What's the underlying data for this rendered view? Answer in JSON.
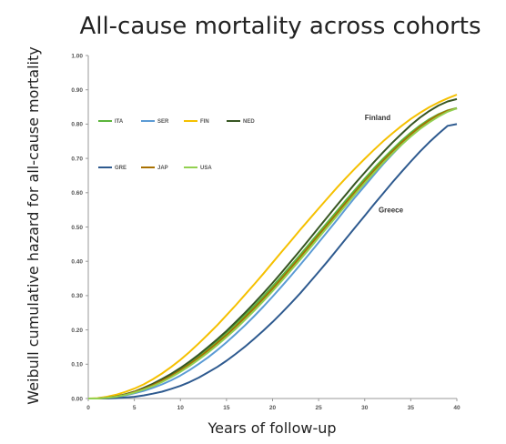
{
  "chart_data": {
    "type": "line",
    "title": "All-cause mortality across cohorts",
    "xlabel": "Years of follow-up",
    "ylabel": "Weibull cumulative hazard for all-cause mortality",
    "xlim": [
      0,
      40
    ],
    "ylim": [
      0,
      1.0
    ],
    "x_ticks": [
      "0",
      "5",
      "10",
      "15",
      "20",
      "25",
      "30",
      "35",
      "40"
    ],
    "y_ticks": [
      "0.00",
      "0.10",
      "0.20",
      "0.30",
      "0.40",
      "0.50",
      "0.60",
      "0.70",
      "0.80",
      "0.90",
      "1.00"
    ],
    "grid": false,
    "x": [
      0,
      1,
      2,
      3,
      4,
      5,
      6,
      7,
      8,
      9,
      10,
      11,
      12,
      13,
      14,
      15,
      16,
      17,
      18,
      19,
      20,
      21,
      22,
      23,
      24,
      25,
      26,
      27,
      28,
      29,
      30,
      31,
      32,
      33,
      34,
      35,
      36,
      37,
      38,
      39,
      40
    ],
    "series": [
      {
        "name": "ITA",
        "color": "#5bb53c",
        "values": [
          0.0,
          0.0,
          0.002,
          0.006,
          0.012,
          0.02,
          0.03,
          0.042,
          0.055,
          0.07,
          0.087,
          0.105,
          0.125,
          0.146,
          0.168,
          0.192,
          0.217,
          0.243,
          0.27,
          0.298,
          0.327,
          0.357,
          0.388,
          0.419,
          0.451,
          0.483,
          0.515,
          0.547,
          0.579,
          0.61,
          0.641,
          0.671,
          0.699,
          0.726,
          0.752,
          0.775,
          0.796,
          0.814,
          0.829,
          0.84,
          0.847
        ]
      },
      {
        "name": "SER",
        "color": "#5b9bd5",
        "values": [
          0.0,
          0.0,
          0.002,
          0.005,
          0.009,
          0.015,
          0.022,
          0.031,
          0.041,
          0.053,
          0.067,
          0.083,
          0.101,
          0.12,
          0.141,
          0.164,
          0.188,
          0.213,
          0.24,
          0.268,
          0.297,
          0.327,
          0.358,
          0.39,
          0.422,
          0.455,
          0.488,
          0.521,
          0.555,
          0.588,
          0.62,
          0.652,
          0.683,
          0.712,
          0.74,
          0.765,
          0.788,
          0.808,
          0.825,
          0.838,
          0.846
        ]
      },
      {
        "name": "FIN",
        "color": "#f5c000",
        "values": [
          0.0,
          0.001,
          0.005,
          0.011,
          0.019,
          0.029,
          0.041,
          0.056,
          0.073,
          0.092,
          0.113,
          0.136,
          0.161,
          0.187,
          0.214,
          0.243,
          0.272,
          0.302,
          0.333,
          0.364,
          0.396,
          0.428,
          0.46,
          0.492,
          0.523,
          0.554,
          0.585,
          0.615,
          0.644,
          0.672,
          0.699,
          0.725,
          0.75,
          0.773,
          0.795,
          0.815,
          0.833,
          0.849,
          0.863,
          0.875,
          0.886
        ]
      },
      {
        "name": "NED",
        "color": "#375623",
        "values": [
          0.0,
          0.0,
          0.002,
          0.006,
          0.012,
          0.02,
          0.031,
          0.043,
          0.057,
          0.072,
          0.089,
          0.108,
          0.128,
          0.15,
          0.173,
          0.197,
          0.223,
          0.25,
          0.278,
          0.307,
          0.337,
          0.368,
          0.4,
          0.432,
          0.465,
          0.498,
          0.531,
          0.564,
          0.596,
          0.628,
          0.659,
          0.689,
          0.718,
          0.746,
          0.772,
          0.797,
          0.819,
          0.838,
          0.854,
          0.866,
          0.873
        ]
      },
      {
        "name": "GRE",
        "color": "#2e5a8f",
        "values": [
          0.0,
          0.0,
          0.0,
          0.001,
          0.003,
          0.005,
          0.009,
          0.014,
          0.02,
          0.028,
          0.037,
          0.048,
          0.061,
          0.076,
          0.092,
          0.11,
          0.13,
          0.151,
          0.174,
          0.198,
          0.223,
          0.25,
          0.278,
          0.307,
          0.338,
          0.369,
          0.401,
          0.434,
          0.467,
          0.5,
          0.533,
          0.566,
          0.598,
          0.63,
          0.661,
          0.691,
          0.72,
          0.747,
          0.772,
          0.795,
          0.8
        ]
      },
      {
        "name": "JAP",
        "color": "#a87000",
        "values": [
          0.0,
          0.0,
          0.002,
          0.006,
          0.011,
          0.019,
          0.028,
          0.039,
          0.052,
          0.066,
          0.082,
          0.1,
          0.119,
          0.14,
          0.162,
          0.185,
          0.21,
          0.236,
          0.263,
          0.291,
          0.32,
          0.35,
          0.381,
          0.412,
          0.444,
          0.476,
          0.508,
          0.54,
          0.572,
          0.603,
          0.634,
          0.664,
          0.693,
          0.72,
          0.746,
          0.77,
          0.792,
          0.811,
          0.827,
          0.839,
          0.846
        ]
      },
      {
        "name": "USA",
        "color": "#92d050",
        "values": [
          0.0,
          0.0,
          0.002,
          0.005,
          0.01,
          0.017,
          0.026,
          0.036,
          0.048,
          0.062,
          0.078,
          0.095,
          0.114,
          0.134,
          0.156,
          0.179,
          0.203,
          0.229,
          0.256,
          0.284,
          0.313,
          0.343,
          0.374,
          0.405,
          0.437,
          0.469,
          0.501,
          0.533,
          0.565,
          0.597,
          0.628,
          0.658,
          0.687,
          0.714,
          0.74,
          0.764,
          0.786,
          0.805,
          0.822,
          0.836,
          0.846
        ]
      }
    ],
    "legend_position": "upper-left",
    "annotations": [
      {
        "text": "Finland",
        "x": 30,
        "y": 0.82
      },
      {
        "text": "Greece",
        "x": 31.5,
        "y": 0.55
      }
    ]
  }
}
